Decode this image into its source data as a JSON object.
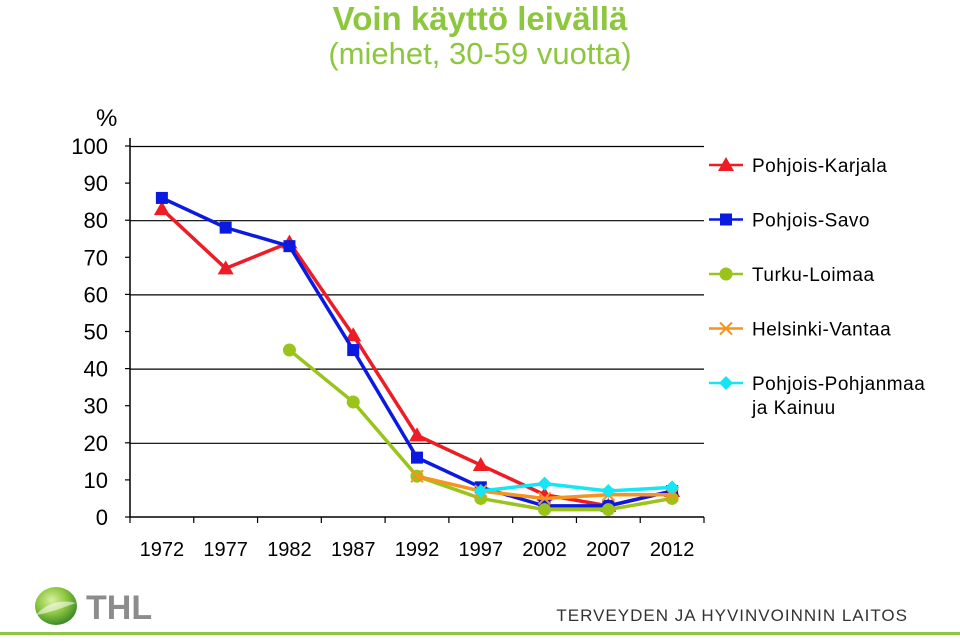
{
  "header": {
    "title": "Voin käyttö leivällä",
    "subtitle": "(miehet, 30-59 vuotta)"
  },
  "chart_data": {
    "type": "line",
    "title": "Voin käyttö leivällä",
    "subtitle": "(miehet, 30-59 vuotta)",
    "ylabel": "%",
    "xlabel": "",
    "ylim": [
      0,
      100
    ],
    "yticks": [
      0,
      10,
      20,
      30,
      40,
      50,
      60,
      70,
      80,
      90,
      100
    ],
    "categories": [
      "1972",
      "1977",
      "1982",
      "1987",
      "1992",
      "1997",
      "2002",
      "2007",
      "2012"
    ],
    "grid": true,
    "legend": "right",
    "series": [
      {
        "name": "Pohjois-Karjala",
        "color": "#ee1c25",
        "marker": "triangle",
        "values": [
          83,
          67,
          74,
          49,
          22,
          14,
          6,
          3,
          7
        ]
      },
      {
        "name": "Pohjois-Savo",
        "color": "#0a1ae0",
        "marker": "square",
        "values": [
          86,
          78,
          73,
          45,
          16,
          8,
          3,
          3,
          7
        ]
      },
      {
        "name": "Turku-Loimaa",
        "color": "#9ac31c",
        "marker": "circle",
        "values": [
          null,
          null,
          45,
          31,
          11,
          5,
          2,
          2,
          5
        ]
      },
      {
        "name": "Helsinki-Vantaa",
        "color": "#f7941d",
        "marker": "x",
        "values": [
          null,
          null,
          null,
          null,
          11,
          7,
          5,
          6,
          6
        ]
      },
      {
        "name": "Pohjois-Pohjanmaa ja Kainuu",
        "name_lines": [
          "Pohjois-Pohjanmaa",
          "ja Kainuu"
        ],
        "color": "#14e6f5",
        "marker": "diamond",
        "values": [
          null,
          null,
          null,
          null,
          null,
          7,
          9,
          7,
          8
        ]
      }
    ]
  },
  "footer": {
    "logo_text": "THL",
    "organization": "TERVEYDEN JA HYVINVOINNIN LAITOS",
    "accent": "#8dc63f"
  }
}
